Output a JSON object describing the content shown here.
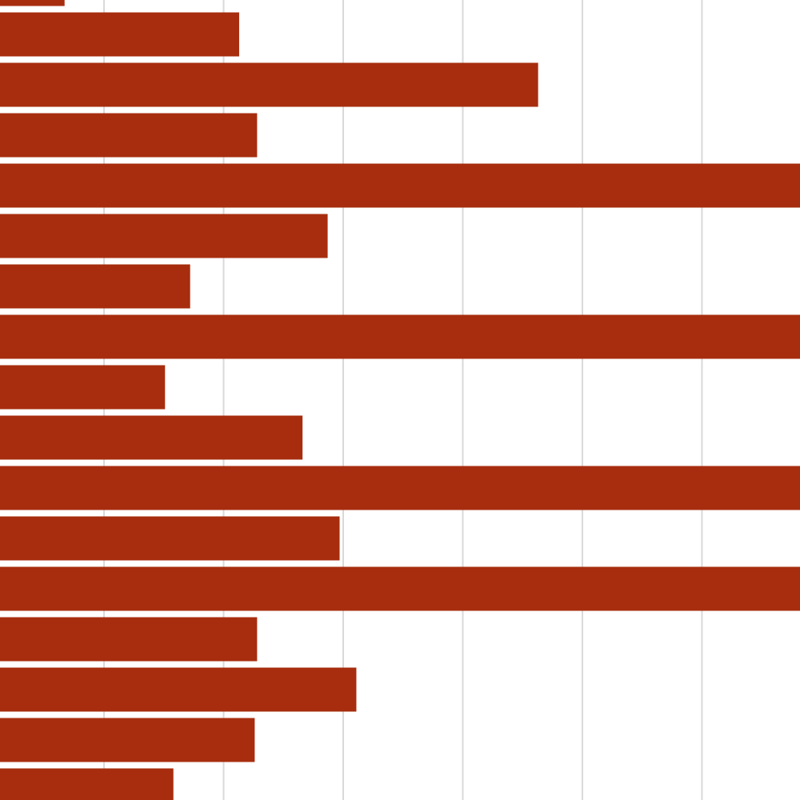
{
  "chart_data": {
    "type": "bar",
    "orientation": "horizontal",
    "color": "#a72d0e",
    "values": [
      0.67,
      2.13,
      4.63,
      2.28,
      7.0,
      2.87,
      1.72,
      7.0,
      1.51,
      2.66,
      7.0,
      2.97,
      7.0,
      2.28,
      3.11,
      2.26,
      1.58
    ],
    "xlim": [
      0.13,
      6.82
    ],
    "xticks": [
      1,
      2,
      3,
      4,
      5,
      6
    ],
    "grid": true,
    "grid_color": "#d9d9d9"
  }
}
